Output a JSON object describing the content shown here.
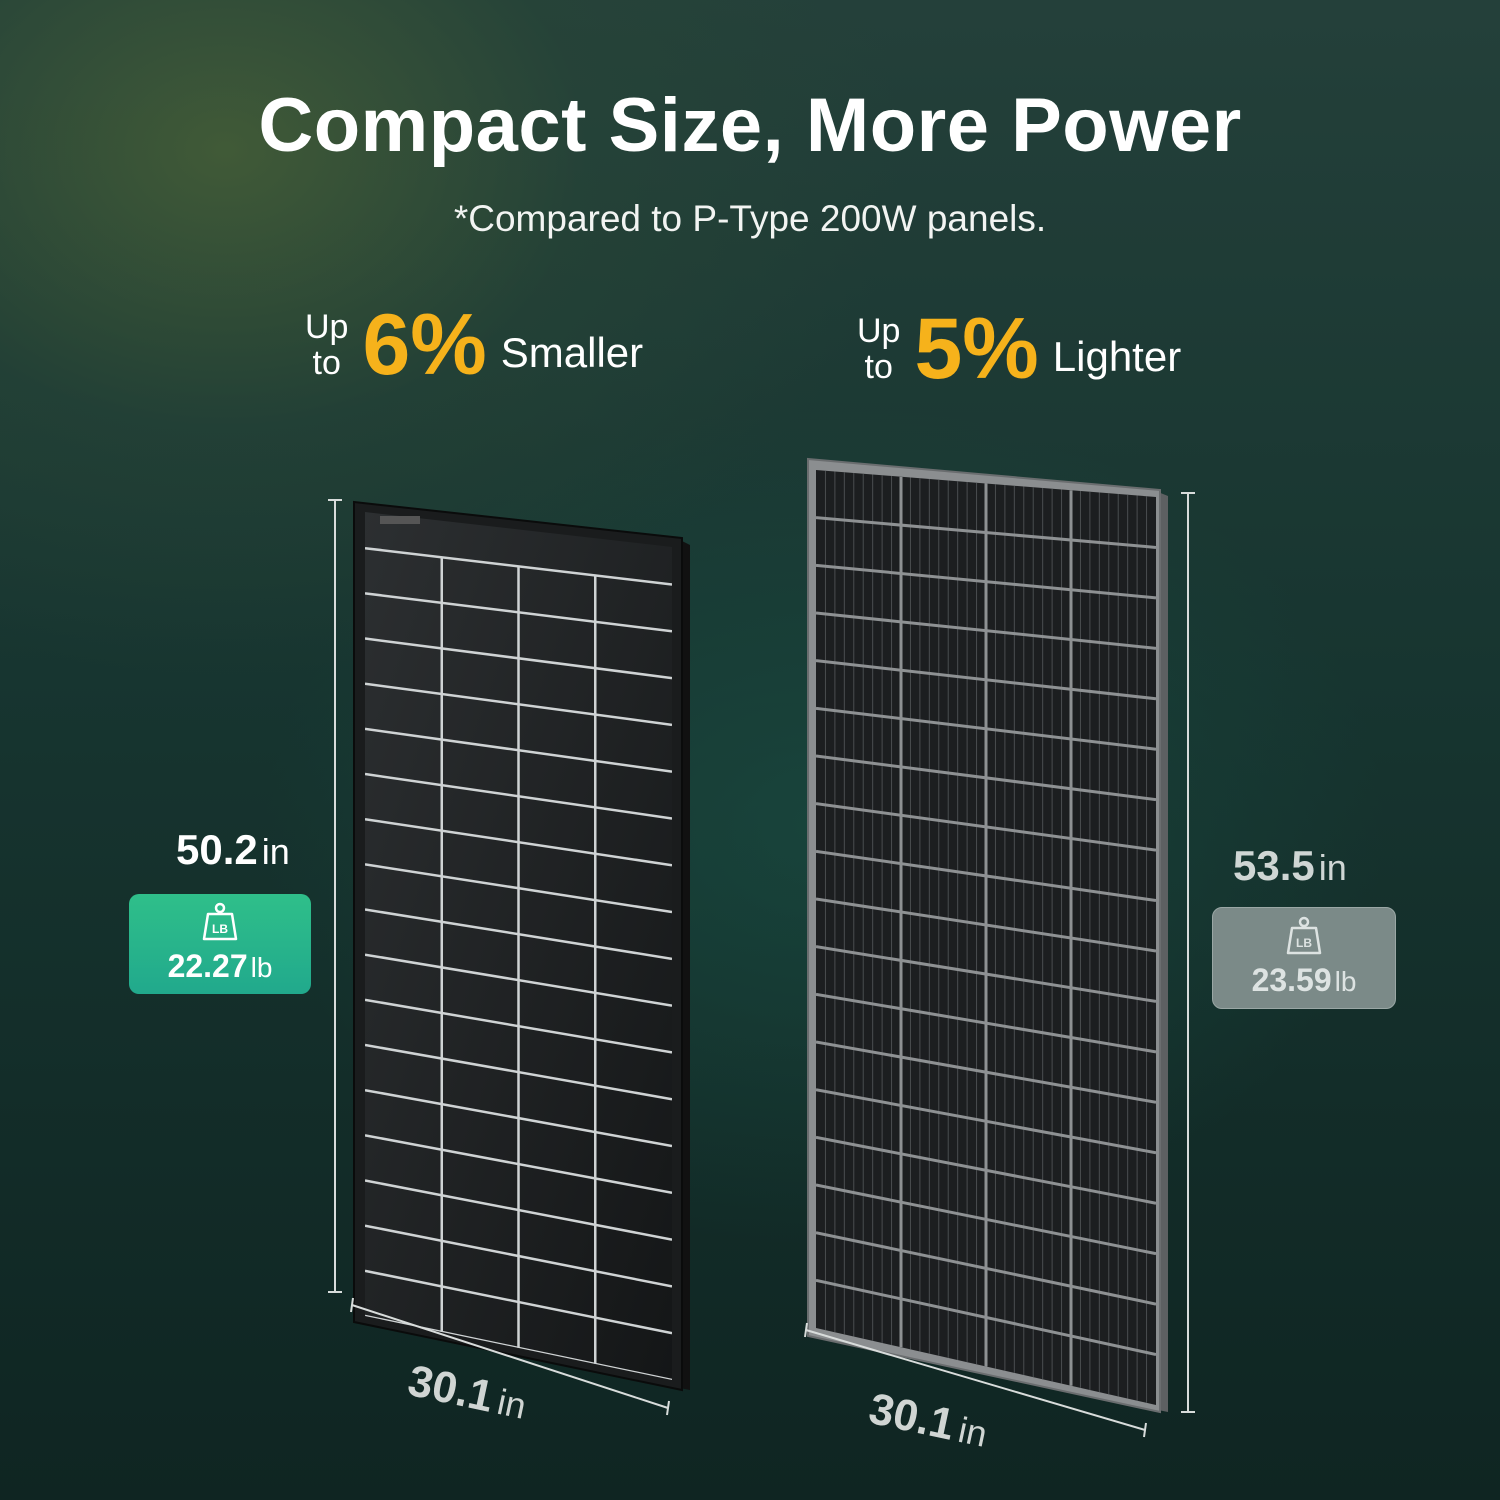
{
  "headline": "Compact Size, More Power",
  "subtitle": "*Compared to P-Type 200W panels.",
  "claims": [
    {
      "up": "Up",
      "to": "to",
      "percent": "6%",
      "word": "Smaller"
    },
    {
      "up": "Up",
      "to": "to",
      "percent": "5%",
      "word": "Lighter"
    }
  ],
  "left_panel": {
    "height_value": "50.2",
    "height_unit": "in",
    "weight_icon": "LB",
    "weight_value": "22.27",
    "weight_unit": "lb",
    "width_value": "30.1",
    "width_unit": "in",
    "badge_color": "#2fbf8a"
  },
  "right_panel": {
    "height_value": "53.5",
    "height_unit": "in",
    "weight_icon": "LB",
    "weight_value": "23.59",
    "weight_unit": "lb",
    "width_value": "30.1",
    "width_unit": "in",
    "badge_color": "#7b8a88"
  },
  "accent_color": "#f6b21b"
}
